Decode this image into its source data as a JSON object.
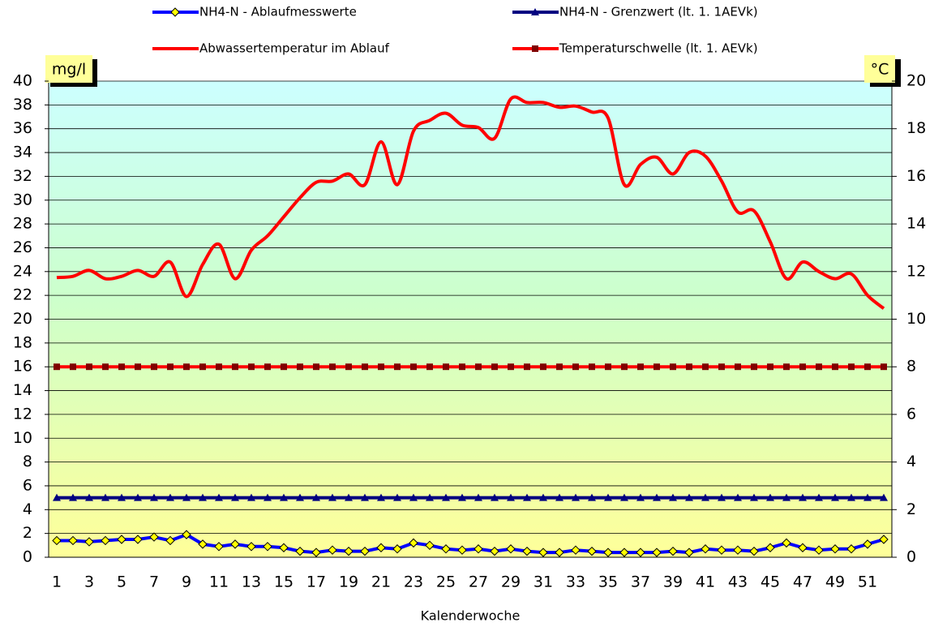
{
  "chart_data": {
    "type": "line",
    "x_label": "Kalenderwoche",
    "y_label": "mg/l",
    "y2_label": "°C",
    "categories": [
      1,
      null,
      3,
      null,
      5,
      null,
      7,
      null,
      9,
      null,
      11,
      null,
      13,
      null,
      15,
      null,
      17,
      null,
      19,
      null,
      21,
      null,
      23,
      null,
      25,
      null,
      27,
      null,
      29,
      null,
      31,
      null,
      33,
      null,
      35,
      null,
      37,
      null,
      39,
      null,
      41,
      null,
      43,
      null,
      45,
      null,
      47,
      null,
      49,
      null,
      51,
      null
    ],
    "ylim": [
      0,
      40
    ],
    "yticks": [
      0,
      2,
      4,
      6,
      8,
      10,
      12,
      14,
      16,
      18,
      20,
      22,
      24,
      26,
      28,
      30,
      32,
      34,
      36,
      38,
      40
    ],
    "y2lim": [
      0,
      20
    ],
    "y2ticks": [
      0,
      2,
      4,
      6,
      8,
      10,
      12,
      14,
      16,
      18,
      20
    ],
    "grid": true,
    "legend": "top",
    "series": [
      {
        "name": "NH4-N - Ablaufmesswerte",
        "color": "#0000ff",
        "marker": "diamond",
        "marker_color": "#ffff00",
        "values": [
          1.4,
          1.4,
          1.3,
          1.4,
          1.5,
          1.5,
          1.7,
          1.4,
          1.9,
          1.1,
          0.9,
          1.1,
          0.9,
          0.9,
          0.8,
          0.5,
          0.4,
          0.6,
          0.5,
          0.5,
          0.8,
          0.7,
          1.2,
          1.0,
          0.7,
          0.6,
          0.7,
          0.5,
          0.7,
          0.5,
          0.4,
          0.4,
          0.6,
          0.5,
          0.4,
          0.4,
          0.4,
          0.4,
          0.5,
          0.4,
          0.7,
          0.6,
          0.6,
          0.5,
          0.8,
          1.2,
          0.8,
          0.6,
          0.7,
          0.7,
          1.1,
          1.5
        ]
      },
      {
        "name": "NH4-N - Grenzwert (lt. 1. 1AEVk)",
        "color": "#000080",
        "marker": "triangle",
        "marker_color": "#000080",
        "values": [
          5,
          5,
          5,
          5,
          5,
          5,
          5,
          5,
          5,
          5,
          5,
          5,
          5,
          5,
          5,
          5,
          5,
          5,
          5,
          5,
          5,
          5,
          5,
          5,
          5,
          5,
          5,
          5,
          5,
          5,
          5,
          5,
          5,
          5,
          5,
          5,
          5,
          5,
          5,
          5,
          5,
          5,
          5,
          5,
          5,
          5,
          5,
          5,
          5,
          5,
          5,
          5
        ]
      },
      {
        "name": "Abwassertemperatur im Ablauf",
        "color": "#ff0000",
        "axis": "y2",
        "smooth": true,
        "values": [
          11.75,
          11.8,
          12.05,
          11.7,
          11.8,
          12.05,
          11.8,
          12.4,
          10.95,
          12.3,
          13.15,
          11.7,
          12.9,
          13.5,
          14.3,
          15.1,
          15.75,
          15.8,
          16.1,
          15.65,
          17.45,
          15.65,
          17.9,
          18.35,
          18.65,
          18.15,
          18.05,
          17.6,
          19.25,
          19.1,
          19.1,
          18.9,
          18.95,
          18.7,
          18.45,
          15.65,
          16.5,
          16.8,
          16.1,
          17.0,
          16.85,
          15.8,
          14.5,
          14.55,
          13.25,
          11.7,
          12.4,
          12.0,
          11.7,
          11.9,
          11.0,
          10.45
        ]
      },
      {
        "name": "Temperaturschwelle (lt. 1. AEVk)",
        "color": "#ff0000",
        "axis": "y2",
        "marker": "square",
        "marker_color": "#800000",
        "values": [
          8,
          8,
          8,
          8,
          8,
          8,
          8,
          8,
          8,
          8,
          8,
          8,
          8,
          8,
          8,
          8,
          8,
          8,
          8,
          8,
          8,
          8,
          8,
          8,
          8,
          8,
          8,
          8,
          8,
          8,
          8,
          8,
          8,
          8,
          8,
          8,
          8,
          8,
          8,
          8,
          8,
          8,
          8,
          8,
          8,
          8,
          8,
          8,
          8,
          8,
          8,
          8
        ]
      }
    ]
  }
}
